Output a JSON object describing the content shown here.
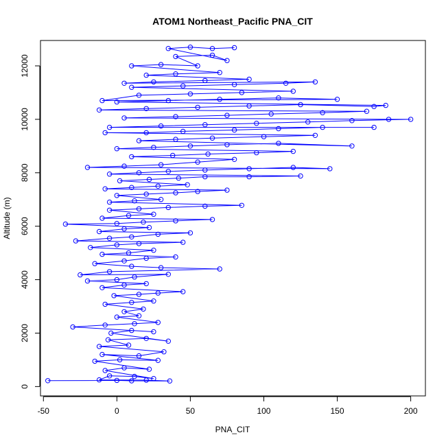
{
  "chart_data": {
    "type": "scatter",
    "title": "ATOM1 Northeast_Pacific PNA_CIT",
    "xlabel": "PNA_CIT",
    "ylabel": "Altitude (m)",
    "xlim": [
      -52,
      210
    ],
    "ylim": [
      -350,
      12950
    ],
    "x_ticks": [
      -50,
      0,
      50,
      100,
      150,
      200
    ],
    "y_ticks": [
      0,
      2000,
      4000,
      6000,
      8000,
      10000,
      12000
    ],
    "x_tick_labels": [
      "-50",
      "0",
      "50",
      "100",
      "150",
      "200"
    ],
    "y_tick_labels": [
      "0",
      "2000",
      "4000",
      "6000",
      "8000",
      "10000",
      "12000"
    ],
    "marker": "open-circle",
    "connected_by_line": true,
    "grid": false,
    "legend": "none",
    "colors": {
      "series": "#0000ff",
      "axis": "#000000",
      "background": "#ffffff"
    },
    "series": [
      {
        "points": [
          [
            -47,
            220
          ],
          [
            0,
            230
          ],
          [
            10,
            215
          ],
          [
            36,
            210
          ],
          [
            20,
            240
          ],
          [
            -12,
            250
          ],
          [
            -5,
            400
          ],
          [
            12,
            380
          ],
          [
            25,
            300
          ],
          [
            -8,
            600
          ],
          [
            5,
            700
          ],
          [
            22,
            650
          ],
          [
            -15,
            950
          ],
          [
            2,
            1000
          ],
          [
            28,
            980
          ],
          [
            -10,
            1200
          ],
          [
            15,
            1150
          ],
          [
            32,
            1300
          ],
          [
            -12,
            1500
          ],
          [
            8,
            1550
          ],
          [
            -6,
            1750
          ],
          [
            20,
            1800
          ],
          [
            35,
            1700
          ],
          [
            -4,
            2000
          ],
          [
            10,
            2100
          ],
          [
            25,
            2050
          ],
          [
            -30,
            2230
          ],
          [
            -8,
            2300
          ],
          [
            12,
            2350
          ],
          [
            28,
            2400
          ],
          [
            0,
            2600
          ],
          [
            15,
            2650
          ],
          [
            5,
            2800
          ],
          [
            18,
            2900
          ],
          [
            -8,
            3080
          ],
          [
            10,
            3150
          ],
          [
            25,
            3200
          ],
          [
            -2,
            3400
          ],
          [
            15,
            3450
          ],
          [
            28,
            3500
          ],
          [
            45,
            3550
          ],
          [
            -10,
            3700
          ],
          [
            5,
            3800
          ],
          [
            20,
            3850
          ],
          [
            -20,
            3950
          ],
          [
            0,
            4000
          ],
          [
            12,
            4100
          ],
          [
            35,
            4200
          ],
          [
            -25,
            4180
          ],
          [
            -5,
            4300
          ],
          [
            70,
            4400
          ],
          [
            30,
            4450
          ],
          [
            10,
            4500
          ],
          [
            -15,
            4600
          ],
          [
            5,
            4700
          ],
          [
            20,
            4800
          ],
          [
            40,
            4850
          ],
          [
            -10,
            4950
          ],
          [
            8,
            5000
          ],
          [
            25,
            5100
          ],
          [
            -18,
            5200
          ],
          [
            0,
            5300
          ],
          [
            15,
            5350
          ],
          [
            45,
            5400
          ],
          [
            -28,
            5450
          ],
          [
            -5,
            5550
          ],
          [
            10,
            5600
          ],
          [
            28,
            5700
          ],
          [
            50,
            5750
          ],
          [
            -12,
            5800
          ],
          [
            5,
            5900
          ],
          [
            22,
            5950
          ],
          [
            -35,
            6080
          ],
          [
            0,
            6100
          ],
          [
            18,
            6150
          ],
          [
            40,
            6200
          ],
          [
            65,
            6250
          ],
          [
            -10,
            6300
          ],
          [
            8,
            6400
          ],
          [
            25,
            6450
          ],
          [
            -5,
            6600
          ],
          [
            15,
            6650
          ],
          [
            35,
            6700
          ],
          [
            60,
            6750
          ],
          [
            85,
            6780
          ],
          [
            -5,
            6900
          ],
          [
            12,
            6950
          ],
          [
            30,
            7000
          ],
          [
            0,
            7150
          ],
          [
            20,
            7200
          ],
          [
            40,
            7250
          ],
          [
            55,
            7300
          ],
          [
            75,
            7350
          ],
          [
            -8,
            7400
          ],
          [
            10,
            7450
          ],
          [
            28,
            7500
          ],
          [
            48,
            7550
          ],
          [
            2,
            7700
          ],
          [
            22,
            7750
          ],
          [
            42,
            7800
          ],
          [
            60,
            7850
          ],
          [
            90,
            7850
          ],
          [
            125,
            7880
          ],
          [
            -5,
            7950
          ],
          [
            15,
            8000
          ],
          [
            35,
            8050
          ],
          [
            60,
            8100
          ],
          [
            90,
            8150
          ],
          [
            120,
            8200
          ],
          [
            145,
            8150
          ],
          [
            -20,
            8200
          ],
          [
            5,
            8250
          ],
          [
            30,
            8300
          ],
          [
            55,
            8400
          ],
          [
            80,
            8500
          ],
          [
            10,
            8600
          ],
          [
            38,
            8650
          ],
          [
            62,
            8700
          ],
          [
            95,
            8750
          ],
          [
            120,
            8800
          ],
          [
            0,
            8900
          ],
          [
            25,
            8950
          ],
          [
            50,
            9000
          ],
          [
            75,
            9050
          ],
          [
            110,
            9100
          ],
          [
            160,
            9000
          ],
          [
            15,
            9200
          ],
          [
            40,
            9250
          ],
          [
            65,
            9300
          ],
          [
            100,
            9350
          ],
          [
            135,
            9400
          ],
          [
            -8,
            9500
          ],
          [
            20,
            9500
          ],
          [
            45,
            9550
          ],
          [
            80,
            9600
          ],
          [
            110,
            9650
          ],
          [
            140,
            9700
          ],
          [
            175,
            9700
          ],
          [
            -5,
            9700
          ],
          [
            30,
            9750
          ],
          [
            60,
            9800
          ],
          [
            95,
            9850
          ],
          [
            130,
            9900
          ],
          [
            160,
            9950
          ],
          [
            200,
            10000
          ],
          [
            185,
            10000
          ],
          [
            5,
            10050
          ],
          [
            40,
            10100
          ],
          [
            75,
            10150
          ],
          [
            105,
            10200
          ],
          [
            140,
            10250
          ],
          [
            170,
            10300
          ],
          [
            -12,
            10350
          ],
          [
            20,
            10400
          ],
          [
            55,
            10450
          ],
          [
            90,
            10500
          ],
          [
            125,
            10550
          ],
          [
            175,
            10480
          ],
          [
            183,
            10520
          ],
          [
            0,
            10650
          ],
          [
            35,
            10700
          ],
          [
            70,
            10750
          ],
          [
            110,
            10800
          ],
          [
            150,
            10750
          ],
          [
            -10,
            10700
          ],
          [
            15,
            10900
          ],
          [
            50,
            10950
          ],
          [
            85,
            11000
          ],
          [
            120,
            11050
          ],
          [
            10,
            11200
          ],
          [
            45,
            11250
          ],
          [
            80,
            11300
          ],
          [
            115,
            11350
          ],
          [
            135,
            11400
          ],
          [
            5,
            11350
          ],
          [
            25,
            11400
          ],
          [
            60,
            11450
          ],
          [
            90,
            11500
          ],
          [
            20,
            11650
          ],
          [
            40,
            11700
          ],
          [
            70,
            11750
          ],
          [
            10,
            12000
          ],
          [
            30,
            12050
          ],
          [
            55,
            12000
          ],
          [
            40,
            12350
          ],
          [
            65,
            12400
          ],
          [
            75,
            12200
          ],
          [
            35,
            12650
          ],
          [
            50,
            12700
          ],
          [
            65,
            12650
          ],
          [
            80,
            12680
          ]
        ]
      }
    ]
  }
}
